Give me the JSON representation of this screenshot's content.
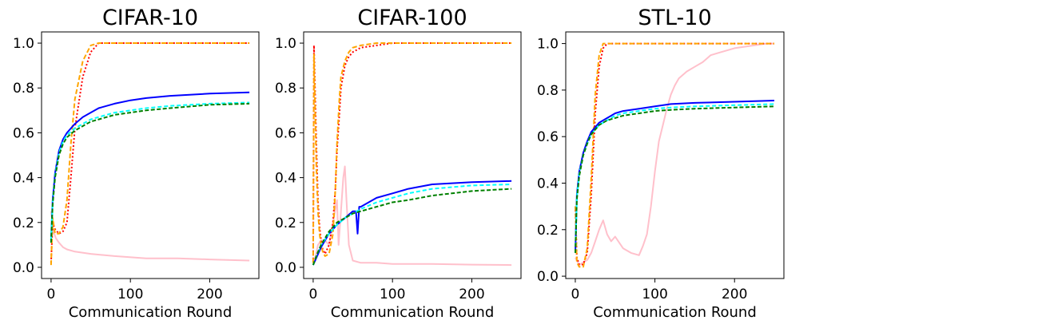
{
  "chart_data": [
    {
      "type": "line",
      "title": "CIFAR-10",
      "xlabel": "Communication Round",
      "ylabel": "",
      "xlim": [
        -12,
        262
      ],
      "ylim": [
        -0.05,
        1.05
      ],
      "xticks": [
        0,
        100,
        200
      ],
      "yticks": [
        0.0,
        0.2,
        0.4,
        0.6,
        0.8,
        1.0
      ],
      "ytick_format": 1,
      "grid": false,
      "series": [
        {
          "color": "#ffc0cb",
          "dash": "",
          "x": [
            0,
            3,
            6,
            10,
            15,
            20,
            30,
            50,
            80,
            120,
            160,
            200,
            250
          ],
          "y": [
            0.25,
            0.16,
            0.13,
            0.11,
            0.09,
            0.08,
            0.07,
            0.06,
            0.05,
            0.04,
            0.04,
            0.035,
            0.03
          ]
        },
        {
          "color": "#ff0000",
          "dash": "2,2.5",
          "x": [
            0,
            2,
            5,
            10,
            15,
            20,
            25,
            30,
            40,
            50,
            60,
            80,
            120,
            200,
            250
          ],
          "y": [
            0.02,
            0.2,
            0.17,
            0.15,
            0.16,
            0.2,
            0.4,
            0.62,
            0.85,
            0.96,
            1.0,
            1.0,
            1.0,
            1.0,
            1.0
          ]
        },
        {
          "color": "#ffa500",
          "dash": "6,3",
          "x": [
            0,
            2,
            5,
            10,
            15,
            20,
            25,
            30,
            40,
            50,
            60,
            80,
            120,
            200,
            250
          ],
          "y": [
            0.01,
            0.22,
            0.15,
            0.15,
            0.18,
            0.3,
            0.55,
            0.75,
            0.92,
            0.99,
            1.0,
            1.0,
            1.0,
            1.0,
            1.0
          ]
        },
        {
          "color": "#0000ff",
          "dash": "",
          "x": [
            0,
            2,
            5,
            10,
            15,
            20,
            30,
            40,
            50,
            60,
            80,
            100,
            120,
            150,
            200,
            250
          ],
          "y": [
            0.12,
            0.3,
            0.42,
            0.52,
            0.57,
            0.6,
            0.64,
            0.67,
            0.69,
            0.71,
            0.73,
            0.745,
            0.755,
            0.765,
            0.775,
            0.78
          ]
        },
        {
          "color": "#00ffff",
          "dash": "5,3",
          "x": [
            0,
            2,
            5,
            10,
            15,
            20,
            30,
            40,
            50,
            60,
            80,
            100,
            120,
            150,
            200,
            250
          ],
          "y": [
            0.12,
            0.29,
            0.41,
            0.51,
            0.56,
            0.59,
            0.62,
            0.64,
            0.66,
            0.67,
            0.69,
            0.7,
            0.71,
            0.72,
            0.73,
            0.735
          ]
        },
        {
          "color": "#008000",
          "dash": "5,2.5",
          "x": [
            0,
            2,
            5,
            10,
            15,
            20,
            30,
            40,
            50,
            60,
            80,
            100,
            120,
            150,
            200,
            250
          ],
          "y": [
            0.11,
            0.28,
            0.4,
            0.5,
            0.55,
            0.58,
            0.61,
            0.63,
            0.65,
            0.66,
            0.68,
            0.69,
            0.7,
            0.71,
            0.725,
            0.73
          ]
        }
      ]
    },
    {
      "type": "line",
      "title": "CIFAR-100",
      "xlabel": "Communication Round",
      "ylabel": "",
      "xlim": [
        -12,
        262
      ],
      "ylim": [
        -0.05,
        1.05
      ],
      "xticks": [
        0,
        100,
        200
      ],
      "yticks": [
        0.0,
        0.2,
        0.4,
        0.6,
        0.8,
        1.0
      ],
      "ytick_format": 1,
      "grid": false,
      "series": [
        {
          "color": "#ffc0cb",
          "dash": "",
          "x": [
            0,
            3,
            6,
            10,
            15,
            20,
            25,
            30,
            32,
            35,
            38,
            40,
            42,
            45,
            50,
            60,
            80,
            100,
            150,
            200,
            250
          ],
          "y": [
            0.02,
            0.05,
            0.1,
            0.12,
            0.12,
            0.1,
            0.2,
            0.3,
            0.1,
            0.25,
            0.4,
            0.45,
            0.3,
            0.1,
            0.03,
            0.02,
            0.02,
            0.015,
            0.015,
            0.012,
            0.01
          ]
        },
        {
          "color": "#ff0000",
          "dash": "2,2.5",
          "x": [
            0,
            1,
            2,
            4,
            6,
            8,
            10,
            12,
            15,
            20,
            25,
            28,
            30,
            33,
            35,
            40,
            45,
            50,
            60,
            80,
            100,
            150,
            200,
            250
          ],
          "y": [
            0.02,
            0.99,
            0.85,
            0.55,
            0.3,
            0.18,
            0.12,
            0.08,
            0.06,
            0.1,
            0.2,
            0.35,
            0.52,
            0.68,
            0.8,
            0.9,
            0.94,
            0.96,
            0.98,
            0.99,
            1.0,
            1.0,
            1.0,
            1.0
          ]
        },
        {
          "color": "#ffa500",
          "dash": "6,3",
          "x": [
            0,
            1,
            2,
            4,
            6,
            8,
            10,
            12,
            15,
            20,
            25,
            28,
            30,
            33,
            35,
            40,
            45,
            50,
            60,
            80,
            100,
            150,
            200,
            250
          ],
          "y": [
            0.02,
            0.95,
            0.78,
            0.45,
            0.25,
            0.15,
            0.1,
            0.07,
            0.05,
            0.06,
            0.15,
            0.35,
            0.55,
            0.75,
            0.85,
            0.92,
            0.96,
            0.98,
            0.99,
            1.0,
            1.0,
            1.0,
            1.0,
            1.0
          ]
        },
        {
          "color": "#0000ff",
          "dash": "",
          "x": [
            0,
            5,
            10,
            20,
            30,
            40,
            50,
            54,
            56,
            58,
            60,
            70,
            80,
            100,
            120,
            150,
            200,
            250
          ],
          "y": [
            0.01,
            0.05,
            0.09,
            0.15,
            0.19,
            0.22,
            0.25,
            0.25,
            0.15,
            0.27,
            0.27,
            0.29,
            0.31,
            0.33,
            0.35,
            0.37,
            0.38,
            0.385
          ]
        },
        {
          "color": "#00ffff",
          "dash": "5,3",
          "x": [
            0,
            5,
            10,
            20,
            30,
            40,
            50,
            60,
            80,
            100,
            120,
            150,
            200,
            250
          ],
          "y": [
            0.01,
            0.06,
            0.1,
            0.15,
            0.19,
            0.22,
            0.24,
            0.26,
            0.29,
            0.31,
            0.33,
            0.35,
            0.365,
            0.37
          ]
        },
        {
          "color": "#008000",
          "dash": "5,2.5",
          "x": [
            0,
            5,
            10,
            20,
            30,
            40,
            50,
            60,
            80,
            100,
            120,
            150,
            200,
            250
          ],
          "y": [
            0.01,
            0.06,
            0.1,
            0.16,
            0.2,
            0.22,
            0.24,
            0.25,
            0.27,
            0.29,
            0.3,
            0.32,
            0.34,
            0.35
          ]
        }
      ]
    },
    {
      "type": "line",
      "title": "STL-10",
      "xlabel": "Communication Round",
      "ylabel": "",
      "xlim": [
        -12,
        262
      ],
      "ylim": [
        -0.01,
        1.05
      ],
      "xticks": [
        0,
        100,
        200
      ],
      "yticks": [
        0.0,
        0.2,
        0.4,
        0.6,
        0.8,
        1.0
      ],
      "ytick_format": 1,
      "grid": false,
      "series": [
        {
          "color": "#ffc0cb",
          "dash": "",
          "x": [
            0,
            3,
            6,
            10,
            15,
            20,
            25,
            30,
            35,
            40,
            45,
            50,
            60,
            70,
            80,
            85,
            90,
            95,
            100,
            105,
            110,
            115,
            120,
            125,
            130,
            140,
            150,
            160,
            170,
            180,
            200,
            220,
            240,
            250
          ],
          "y": [
            0.08,
            0.06,
            0.05,
            0.06,
            0.07,
            0.1,
            0.15,
            0.2,
            0.24,
            0.18,
            0.15,
            0.17,
            0.12,
            0.1,
            0.09,
            0.13,
            0.18,
            0.3,
            0.45,
            0.58,
            0.65,
            0.72,
            0.78,
            0.82,
            0.85,
            0.88,
            0.9,
            0.92,
            0.95,
            0.96,
            0.98,
            0.99,
            1.0,
            1.0
          ]
        },
        {
          "color": "#ff0000",
          "dash": "2,2.5",
          "x": [
            0,
            2,
            5,
            10,
            15,
            20,
            25,
            30,
            35,
            40,
            50,
            100,
            200,
            250
          ],
          "y": [
            0.3,
            0.08,
            0.05,
            0.05,
            0.1,
            0.35,
            0.7,
            0.9,
            0.98,
            1.0,
            1.0,
            1.0,
            1.0,
            1.0
          ]
        },
        {
          "color": "#ffa500",
          "dash": "6,3",
          "x": [
            0,
            2,
            5,
            10,
            15,
            20,
            25,
            30,
            35,
            40,
            50,
            100,
            200,
            250
          ],
          "y": [
            0.3,
            0.06,
            0.04,
            0.04,
            0.12,
            0.42,
            0.78,
            0.95,
            1.0,
            1.0,
            1.0,
            1.0,
            1.0,
            1.0
          ]
        },
        {
          "color": "#0000ff",
          "dash": "",
          "x": [
            0,
            2,
            5,
            10,
            15,
            20,
            30,
            40,
            50,
            60,
            80,
            100,
            120,
            150,
            200,
            250
          ],
          "y": [
            0.1,
            0.35,
            0.45,
            0.53,
            0.58,
            0.62,
            0.66,
            0.68,
            0.7,
            0.71,
            0.72,
            0.73,
            0.74,
            0.745,
            0.75,
            0.755
          ]
        },
        {
          "color": "#00ffff",
          "dash": "5,3",
          "x": [
            0,
            2,
            5,
            10,
            15,
            20,
            30,
            40,
            50,
            60,
            80,
            100,
            120,
            150,
            200,
            250
          ],
          "y": [
            0.1,
            0.34,
            0.44,
            0.52,
            0.57,
            0.61,
            0.65,
            0.67,
            0.69,
            0.7,
            0.71,
            0.72,
            0.725,
            0.73,
            0.735,
            0.74
          ]
        },
        {
          "color": "#008000",
          "dash": "5,2.5",
          "x": [
            0,
            2,
            5,
            10,
            15,
            20,
            30,
            40,
            50,
            60,
            80,
            100,
            120,
            150,
            200,
            250
          ],
          "y": [
            0.1,
            0.33,
            0.43,
            0.52,
            0.57,
            0.61,
            0.65,
            0.67,
            0.68,
            0.69,
            0.7,
            0.71,
            0.715,
            0.72,
            0.725,
            0.73
          ]
        }
      ]
    }
  ]
}
